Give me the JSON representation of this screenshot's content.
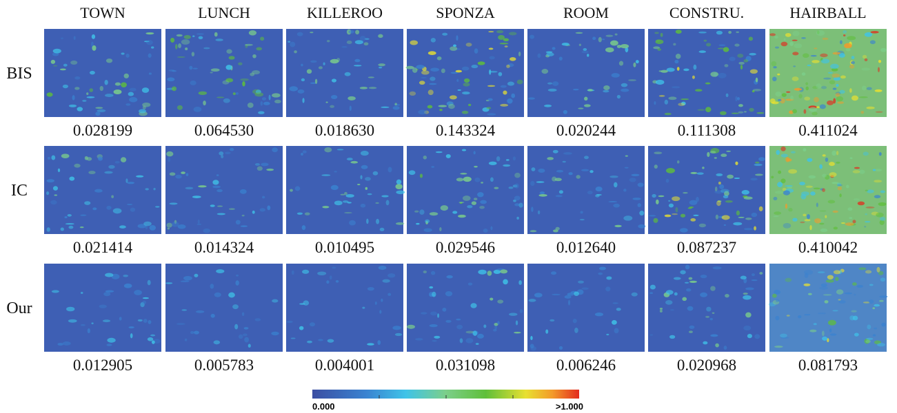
{
  "columns": [
    "TOWN",
    "LUNCH",
    "KILLEROO",
    "SPONZA",
    "ROOM",
    "CONSTRU.",
    "HAIRBALL"
  ],
  "rows": [
    {
      "label": "BIS",
      "values": [
        "0.028199",
        "0.064530",
        "0.018630",
        "0.143324",
        "0.020244",
        "0.111308",
        "0.411024"
      ]
    },
    {
      "label": "IC",
      "values": [
        "0.021414",
        "0.014324",
        "0.010495",
        "0.029546",
        "0.012640",
        "0.087237",
        "0.410042"
      ]
    },
    {
      "label": "Our",
      "values": [
        "0.012905",
        "0.005783",
        "0.004001",
        "0.031098",
        "0.006246",
        "0.020968",
        "0.081793"
      ]
    }
  ],
  "colorbar": {
    "min_label": "0.000",
    "max_label": ">1.000"
  }
}
